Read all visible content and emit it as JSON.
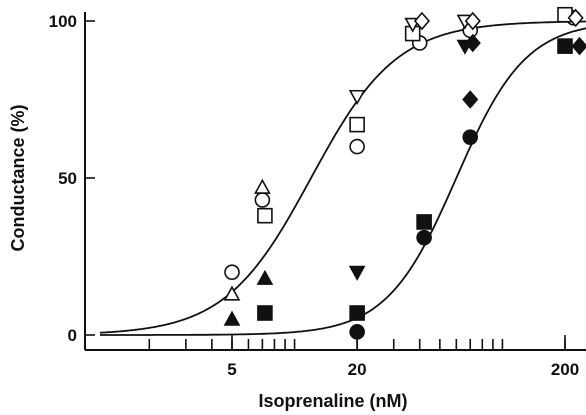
{
  "chart_data": {
    "type": "scatter",
    "x_scale": "log",
    "xlabel": "Isoprenaline (nM)",
    "ylabel": "Conductance (%)",
    "xlim": [
      1,
      250
    ],
    "ylim": [
      0,
      100
    ],
    "x_ticks": [
      {
        "value": 5,
        "label": "5"
      },
      {
        "value": 20,
        "label": "20"
      },
      {
        "value": 200,
        "label": "200"
      }
    ],
    "y_ticks": [
      {
        "value": 0,
        "label": "0"
      },
      {
        "value": 50,
        "label": "50"
      },
      {
        "value": 100,
        "label": "100"
      }
    ],
    "grid": false,
    "colors": {
      "ink": "#111111",
      "background": "#ffffff"
    },
    "fit_curves": [
      {
        "ec50": 12,
        "hill": 2.1,
        "top": 100
      },
      {
        "ec50": 60,
        "hill": 2.6,
        "top": 100
      }
    ],
    "series": [
      {
        "marker": "circle-open",
        "points": [
          {
            "x": 5,
            "y": 20
          },
          {
            "x": 7,
            "y": 43
          },
          {
            "x": 20,
            "y": 60
          },
          {
            "x": 40,
            "y": 93
          },
          {
            "x": 70,
            "y": 97
          },
          {
            "x": 220,
            "y": 101
          }
        ]
      },
      {
        "marker": "triangle-up-open",
        "points": [
          {
            "x": 5,
            "y": 13
          },
          {
            "x": 7,
            "y": 47
          }
        ]
      },
      {
        "marker": "square-open",
        "points": [
          {
            "x": 7.2,
            "y": 38
          },
          {
            "x": 20,
            "y": 67
          },
          {
            "x": 37,
            "y": 96
          },
          {
            "x": 200,
            "y": 102
          }
        ]
      },
      {
        "marker": "triangle-down-open",
        "points": [
          {
            "x": 20,
            "y": 76
          },
          {
            "x": 37,
            "y": 99
          },
          {
            "x": 66,
            "y": 100
          }
        ]
      },
      {
        "marker": "diamond-open",
        "points": [
          {
            "x": 41,
            "y": 100
          },
          {
            "x": 72,
            "y": 100
          },
          {
            "x": 225,
            "y": 101
          }
        ]
      },
      {
        "marker": "triangle-up-filled",
        "points": [
          {
            "x": 5,
            "y": 5
          },
          {
            "x": 7.2,
            "y": 18
          }
        ]
      },
      {
        "marker": "square-filled",
        "points": [
          {
            "x": 7.2,
            "y": 7
          },
          {
            "x": 20,
            "y": 7
          },
          {
            "x": 42,
            "y": 36
          },
          {
            "x": 200,
            "y": 92
          }
        ]
      },
      {
        "marker": "triangle-down-filled",
        "points": [
          {
            "x": 20,
            "y": 20
          },
          {
            "x": 66,
            "y": 92
          }
        ]
      },
      {
        "marker": "diamond-filled",
        "points": [
          {
            "x": 72,
            "y": 93
          },
          {
            "x": 70,
            "y": 75
          },
          {
            "x": 235,
            "y": 92
          }
        ]
      },
      {
        "marker": "circle-filled",
        "points": [
          {
            "x": 20,
            "y": 1
          },
          {
            "x": 42,
            "y": 31
          },
          {
            "x": 70,
            "y": 63
          }
        ]
      }
    ]
  }
}
